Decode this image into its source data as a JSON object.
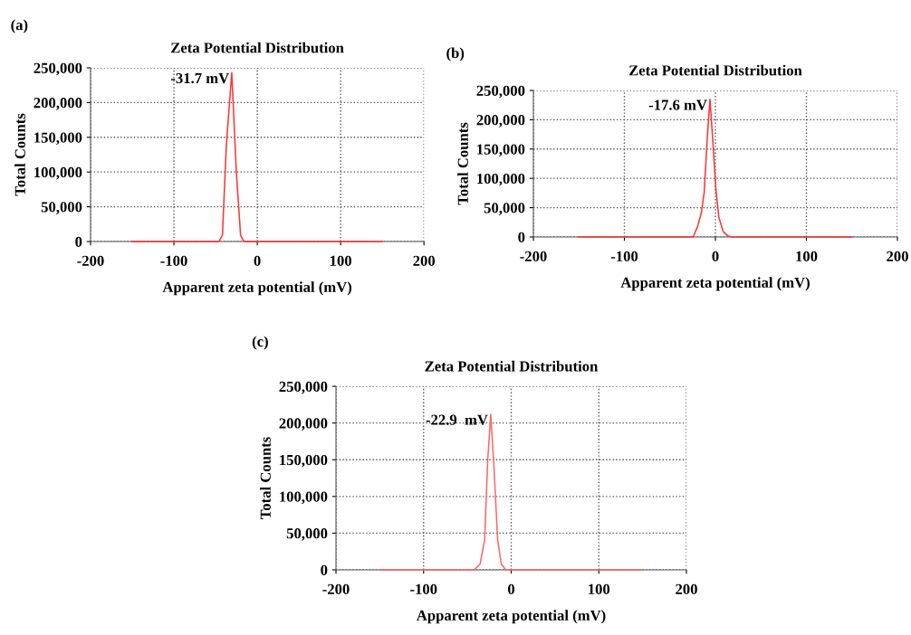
{
  "chart_data": [
    {
      "type": "line",
      "title": "Zeta Potential Distribution",
      "xlabel": "Apparent zeta potential (mV)",
      "ylabel": "Total Counts",
      "annotations": [
        "(a)",
        {
          "text": "-31.7 mV",
          "x": -30.6,
          "y": 243000
        }
      ],
      "series": [
        {
          "color": "#ff3333",
          "x": [
            -150,
            -46,
            -41.8,
            -37.1,
            -30.6,
            -25.1,
            -20,
            -16,
            150
          ],
          "values": [
            0,
            0,
            9000,
            139000,
            243000,
            100000,
            9000,
            0,
            0
          ]
        }
      ],
      "xlim": [
        -200,
        200
      ],
      "xticks": [
        -200,
        -100,
        0,
        100,
        200
      ],
      "ylim": [
        0,
        250000
      ],
      "yticks": [
        {
          "value": 0,
          "label": "0"
        },
        {
          "value": 50000,
          "label": "50,000"
        },
        {
          "value": 100000,
          "label": "100,000"
        },
        {
          "value": 150000,
          "label": "150,000"
        },
        {
          "value": 200000,
          "label": "200,000"
        },
        {
          "value": 250000,
          "label": "250,000"
        }
      ],
      "grid": true,
      "line_style": "solid",
      "marker": "none"
    },
    {
      "type": "line",
      "title": "Zeta Potential Distribution",
      "xlabel": "Apparent zeta potential (mV)",
      "ylabel": "Total Counts",
      "annotations": [
        "(b)",
        {
          "text": "-17.6 mV",
          "x": -6,
          "y": 234600
        }
      ],
      "series": [
        {
          "color": "#ff3333",
          "x": [
            -150,
            -24.6,
            -20,
            -15.6,
            -12.3,
            -9,
            -6,
            -3,
            0.3,
            3.7,
            8.6,
            13.6,
            18.6,
            150
          ],
          "values": [
            0,
            0,
            16000,
            40000,
            76000,
            168000,
            235000,
            168000,
            86000,
            34000,
            9000,
            2000,
            0,
            0
          ]
        }
      ],
      "xlim": [
        -200,
        200
      ],
      "xticks": [
        -200,
        -100,
        0,
        100,
        200
      ],
      "ylim": [
        0,
        250000
      ],
      "yticks": [
        {
          "value": 0,
          "label": "0"
        },
        {
          "value": 50000,
          "label": "50,000"
        },
        {
          "value": 100000,
          "label": "100,000"
        },
        {
          "value": 150000,
          "label": "150,000"
        },
        {
          "value": 200000,
          "label": "200,000"
        },
        {
          "value": 250000,
          "label": "250,000"
        }
      ],
      "grid": true,
      "line_style": "solid",
      "marker": "none"
    },
    {
      "type": "line",
      "title": "Zeta Potential Distribution",
      "xlabel": "Apparent zeta potential (mV)",
      "ylabel": "Total Counts",
      "annotations": [
        "(c)",
        {
          "text": "-22.9  mV",
          "x": -23.4,
          "y": 211900
        }
      ],
      "series": [
        {
          "color": "#ff6666",
          "x": [
            -150,
            -42.4,
            -35.5,
            -30.3,
            -26.9,
            -23.4,
            -20,
            -15.5,
            -11.4,
            -6.2,
            150
          ],
          "values": [
            0,
            0,
            8000,
            41000,
            148000,
            212000,
            148000,
            41000,
            8000,
            0,
            0
          ]
        }
      ],
      "xlim": [
        -200,
        200
      ],
      "xticks": [
        -200,
        -100,
        0,
        100,
        200
      ],
      "ylim": [
        0,
        250000
      ],
      "yticks": [
        {
          "value": 0,
          "label": "0"
        },
        {
          "value": 50000,
          "label": "50,000"
        },
        {
          "value": 100000,
          "label": "100,000"
        },
        {
          "value": 150000,
          "label": "150,000"
        },
        {
          "value": 200000,
          "label": "200,000"
        },
        {
          "value": 250000,
          "label": "250,000"
        }
      ],
      "grid": true,
      "line_style": "solid",
      "marker": "none"
    }
  ]
}
